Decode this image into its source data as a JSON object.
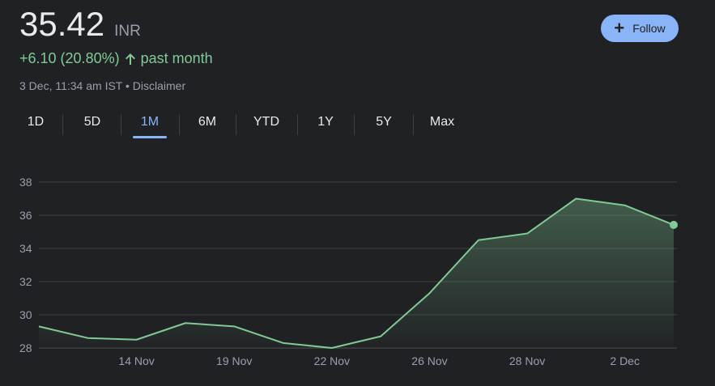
{
  "quote": {
    "price": "35.42",
    "currency": "INR",
    "change": "+6.10 (20.80%)",
    "change_period": "past month",
    "timestamp": "3 Dec, 11:34 am IST",
    "separator": "•",
    "disclaimer": "Disclaimer"
  },
  "follow": {
    "label": "Follow",
    "icon": "plus-icon"
  },
  "tabs": [
    {
      "label": "1D",
      "active": false
    },
    {
      "label": "5D",
      "active": false
    },
    {
      "label": "1M",
      "active": true
    },
    {
      "label": "6M",
      "active": false
    },
    {
      "label": "YTD",
      "active": false
    },
    {
      "label": "1Y",
      "active": false
    },
    {
      "label": "5Y",
      "active": false
    },
    {
      "label": "Max",
      "active": false
    }
  ],
  "colors": {
    "background": "#202124",
    "line": "#81c995",
    "accent": "#8ab4f8",
    "grid": "#3c4043",
    "muted": "#9aa0a6"
  },
  "chart_data": {
    "type": "area",
    "title": "",
    "xlabel": "",
    "ylabel": "",
    "x_tick_labels": [
      "14 Nov",
      "19 Nov",
      "22 Nov",
      "26 Nov",
      "28 Nov",
      "2 Dec"
    ],
    "y_ticks": [
      28,
      30,
      32,
      34,
      36,
      38
    ],
    "ylim": [
      28,
      38
    ],
    "grid": true,
    "series": [
      {
        "x": [
          "8 Nov",
          "11 Nov",
          "14 Nov",
          "18 Nov",
          "19 Nov",
          "21 Nov",
          "22 Nov",
          "25 Nov",
          "26 Nov",
          "27 Nov",
          "28 Nov",
          "29 Nov",
          "2 Dec",
          "3 Dec"
        ],
        "values": [
          29.3,
          28.6,
          28.5,
          29.5,
          29.3,
          28.3,
          28.0,
          28.7,
          31.3,
          34.5,
          34.9,
          37.0,
          36.6,
          35.42
        ]
      }
    ]
  }
}
